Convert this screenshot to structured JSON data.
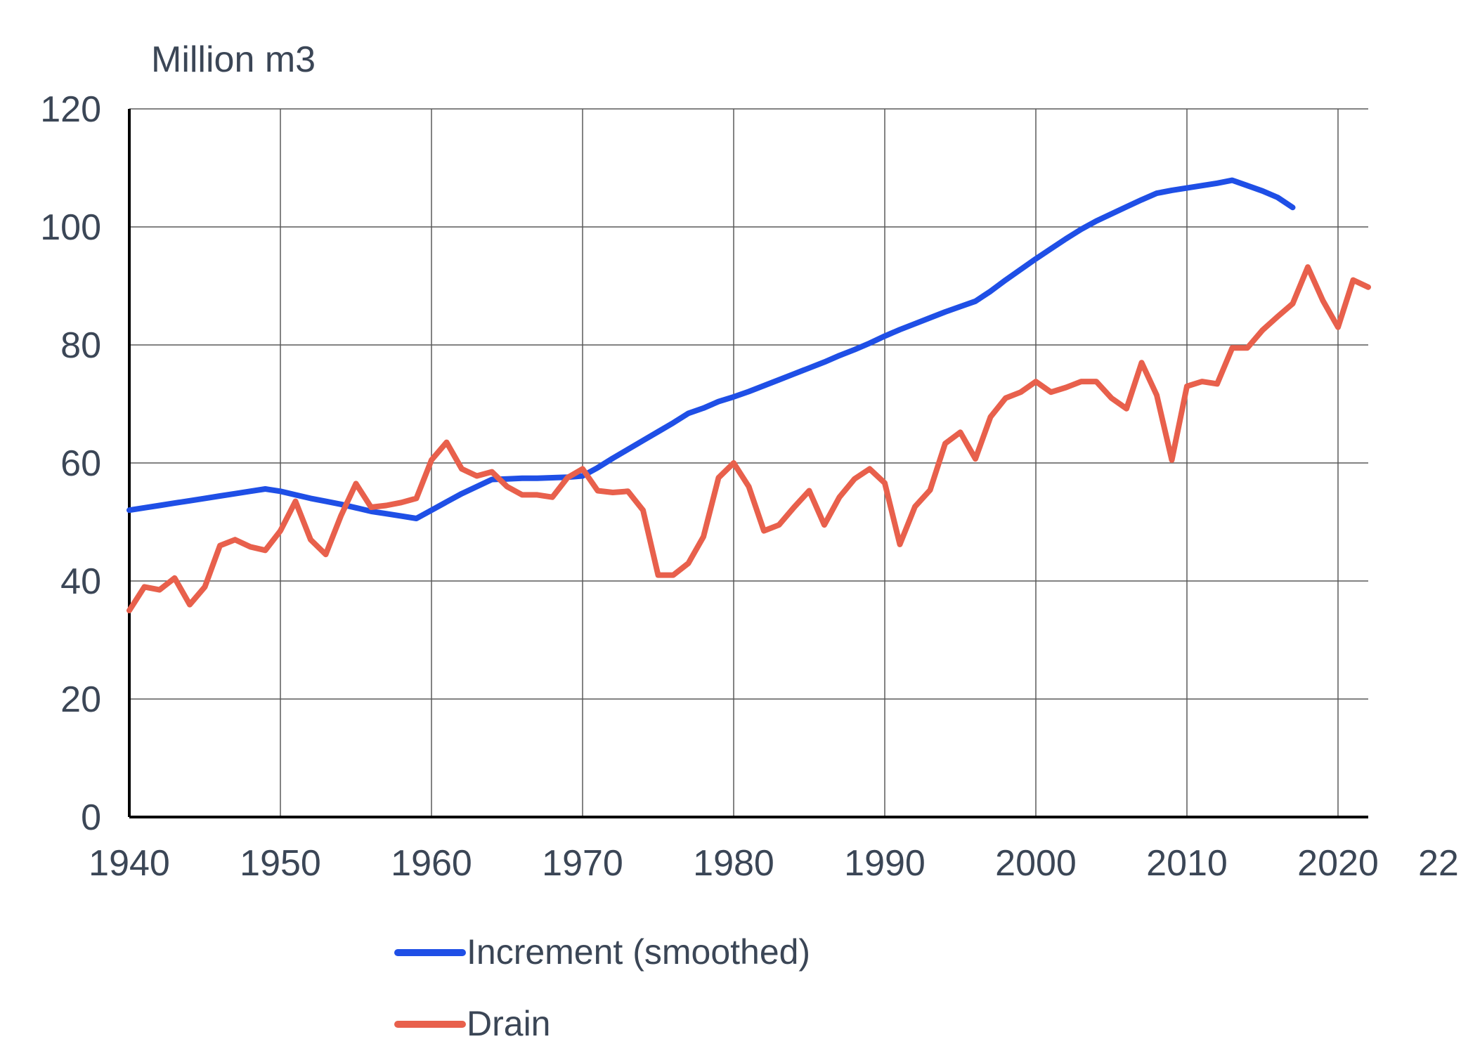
{
  "chart_data": {
    "type": "line",
    "ylabel": "Million m3",
    "ylim": [
      0,
      120
    ],
    "xlim": [
      1940,
      2022
    ],
    "y_ticks": [
      "0",
      "20",
      "40",
      "60",
      "80",
      "100",
      "120"
    ],
    "x_ticks": [
      "1940",
      "1950",
      "1960",
      "1970",
      "1980",
      "1990",
      "2000",
      "2010",
      "2020"
    ],
    "x_end_label": "22",
    "grid": true,
    "legend_position": "bottom",
    "series": [
      {
        "name": "Increment (smoothed)",
        "color": "#1f4fe6",
        "x": [
          1940,
          1941,
          1942,
          1943,
          1944,
          1945,
          1946,
          1947,
          1948,
          1949,
          1950,
          1951,
          1952,
          1953,
          1954,
          1955,
          1956,
          1957,
          1958,
          1959,
          1960,
          1961,
          1962,
          1963,
          1964,
          1965,
          1966,
          1967,
          1968,
          1969,
          1970,
          1971,
          1972,
          1973,
          1974,
          1975,
          1976,
          1977,
          1978,
          1979,
          1980,
          1981,
          1982,
          1983,
          1984,
          1985,
          1986,
          1987,
          1988,
          1989,
          1990,
          1991,
          1992,
          1993,
          1994,
          1995,
          1996,
          1997,
          1998,
          1999,
          2000,
          2001,
          2002,
          2003,
          2004,
          2005,
          2006,
          2007,
          2008,
          2009,
          2010,
          2011,
          2012,
          2013,
          2014,
          2015,
          2016,
          2017
        ],
        "values": [
          52.0,
          52.4,
          52.8,
          53.2,
          53.6,
          54.0,
          54.4,
          54.8,
          55.2,
          55.6,
          55.2,
          54.6,
          54.0,
          53.5,
          53.0,
          52.4,
          51.8,
          51.4,
          51.0,
          50.6,
          52.0,
          53.4,
          54.8,
          56.0,
          57.2,
          57.3,
          57.4,
          57.4,
          57.5,
          57.6,
          57.8,
          59.2,
          60.8,
          62.3,
          63.8,
          65.3,
          66.8,
          68.4,
          69.3,
          70.4,
          71.2,
          72.1,
          73.1,
          74.1,
          75.1,
          76.1,
          77.1,
          78.2,
          79.2,
          80.3,
          81.5,
          82.6,
          83.6,
          84.6,
          85.6,
          86.5,
          87.4,
          89.1,
          91.0,
          92.8,
          94.6,
          96.3,
          98.0,
          99.6,
          101.0,
          102.2,
          103.4,
          104.6,
          105.7,
          106.2,
          106.6,
          107.0,
          107.4,
          107.9,
          107.0,
          106.1,
          105.0,
          103.3
        ]
      },
      {
        "name": "Drain",
        "color": "#e8604c",
        "x": [
          1940,
          1941,
          1942,
          1943,
          1944,
          1945,
          1946,
          1947,
          1948,
          1949,
          1950,
          1951,
          1952,
          1953,
          1954,
          1955,
          1956,
          1957,
          1958,
          1959,
          1960,
          1961,
          1962,
          1963,
          1964,
          1965,
          1966,
          1967,
          1968,
          1969,
          1970,
          1971,
          1972,
          1973,
          1974,
          1975,
          1976,
          1977,
          1978,
          1979,
          1980,
          1981,
          1982,
          1983,
          1984,
          1985,
          1986,
          1987,
          1988,
          1989,
          1990,
          1991,
          1992,
          1993,
          1994,
          1995,
          1996,
          1997,
          1998,
          1999,
          2000,
          2001,
          2002,
          2003,
          2004,
          2005,
          2006,
          2007,
          2008,
          2009,
          2010,
          2011,
          2012,
          2013,
          2014,
          2015,
          2016,
          2017,
          2018,
          2019,
          2020,
          2021,
          2022
        ],
        "values": [
          35.0,
          39.0,
          38.5,
          40.5,
          36.0,
          39.0,
          46.0,
          47.0,
          45.8,
          45.2,
          48.5,
          53.5,
          47.0,
          44.5,
          51.0,
          56.5,
          52.5,
          52.8,
          53.3,
          54.0,
          60.5,
          63.5,
          59.0,
          57.8,
          58.5,
          56.0,
          54.6,
          54.6,
          54.2,
          57.5,
          59.0,
          55.3,
          55.0,
          55.2,
          52.0,
          41.0,
          41.0,
          43.0,
          47.5,
          57.5,
          60.0,
          56.0,
          48.5,
          49.5,
          52.5,
          55.3,
          49.5,
          54.2,
          57.3,
          59.0,
          56.6,
          46.2,
          52.6,
          55.4,
          63.3,
          65.2,
          60.7,
          67.8,
          71.0,
          72.0,
          73.8,
          72.0,
          72.8,
          73.8,
          73.8,
          71.0,
          69.2,
          77.0,
          71.5,
          60.5,
          73.0,
          73.8,
          73.4,
          79.5,
          79.5,
          82.5,
          84.8,
          87.0,
          93.2,
          87.5,
          83.0,
          91.0,
          89.8
        ]
      }
    ]
  }
}
